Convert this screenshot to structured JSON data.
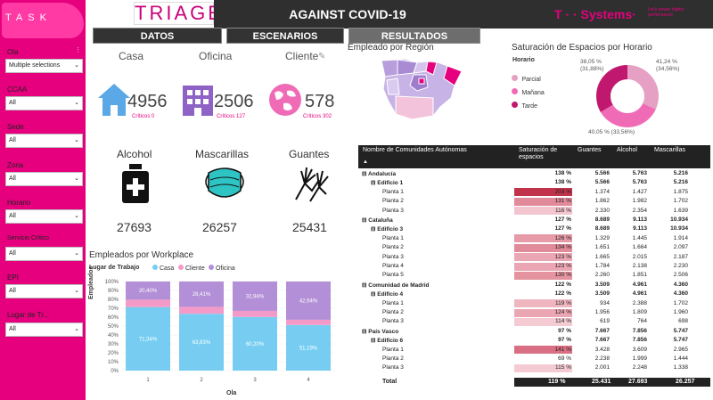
{
  "app": {
    "logo_text": "TASK",
    "brand": "TRIAGE",
    "header_title": "AGAINST COVID-19",
    "vendor": "T · · Systems·",
    "vendor_tagline": "Let's power higher performance",
    "tabs": [
      "DATOS",
      "ESCENARIOS",
      "RESULTADOS"
    ]
  },
  "filters": [
    {
      "label": "Ola",
      "value": "Multiple selections"
    },
    {
      "label": "CCAA",
      "value": "All"
    },
    {
      "label": "Sede",
      "value": "All"
    },
    {
      "label": "Zona",
      "value": "All"
    },
    {
      "label": "Horario",
      "value": "All"
    },
    {
      "label": "Servicio Crítico",
      "value": "All"
    },
    {
      "label": "EPI",
      "value": "All"
    },
    {
      "label": "Lugar de Tr...",
      "value": "All"
    }
  ],
  "kpis": {
    "casa": {
      "label": "Casa",
      "value": "4956",
      "crit_label": "Críticos",
      "crit_value": "0"
    },
    "oficina": {
      "label": "Oficina",
      "value": "2506",
      "crit_label": "Críticos",
      "crit_value": "127"
    },
    "cliente": {
      "label": "Cliente",
      "value": "578",
      "crit_label": "Críticos",
      "crit_value": "302"
    }
  },
  "supplies": {
    "alcohol": {
      "label": "Alcohol",
      "value": "27693"
    },
    "mascarillas": {
      "label": "Mascarillas",
      "value": "26257"
    },
    "guantes": {
      "label": "Guantes",
      "value": "25431"
    }
  },
  "region_map": {
    "title": "Empleado por Región"
  },
  "donut": {
    "title": "Saturación de Espacios por Horario",
    "legend_title": "Horario",
    "legend": [
      {
        "name": "Parcial",
        "color": "#e6a0c4"
      },
      {
        "name": "Mañana",
        "color": "#f06bb5"
      },
      {
        "name": "Tarde",
        "color": "#c0186f"
      }
    ],
    "labels": [
      "38,05 % (31,88%)",
      "41,24 % (34,56%)",
      "40,05 % (33,56%)"
    ]
  },
  "chart_data": {
    "type": "bar",
    "title": "Empleados por Workplace",
    "legend_title": "Lugar de Trabajo",
    "categories": [
      "1",
      "2",
      "3",
      "4"
    ],
    "xlabel": "Ola",
    "ylabel": "Empleados",
    "ylim": [
      0,
      100
    ],
    "yticks": [
      "0%",
      "10%",
      "20%",
      "30%",
      "40%",
      "50%",
      "60%",
      "70%",
      "80%",
      "90%",
      "100%"
    ],
    "series": [
      {
        "name": "Casa",
        "color": "#76cdf1",
        "values": [
          71.34,
          63.83,
          60.2,
          51.19
        ],
        "labels": [
          "71,34%",
          "63,83%",
          "60,20%",
          "51,19%"
        ]
      },
      {
        "name": "Cliente",
        "color": "#f49ac8",
        "values": [
          8.26,
          7.76,
          6.86,
          5.87
        ],
        "labels": [
          "",
          "",
          "",
          ""
        ]
      },
      {
        "name": "Oficina",
        "color": "#b28fd6",
        "values": [
          20.4,
          28.41,
          32.94,
          42.94
        ],
        "labels": [
          "20,40%",
          "28,41%",
          "32,94%",
          "42,94%"
        ]
      }
    ]
  },
  "table": {
    "headers": [
      "Nombre de Comunidades Autónomas",
      "Saturación de espacios",
      "Guantes",
      "Alcohol",
      "Mascarillas"
    ],
    "rows": [
      {
        "level": 0,
        "exp": "⊟",
        "name": "Andalucía",
        "sat": "138 %",
        "g": "5.566",
        "a": "5.763",
        "m": "5.216",
        "heat": ""
      },
      {
        "level": 1,
        "exp": "⊟",
        "name": "Edificio 1",
        "sat": "138 %",
        "g": "5.566",
        "a": "5.763",
        "m": "5.216",
        "heat": ""
      },
      {
        "level": 2,
        "exp": "",
        "name": "Planta 1",
        "sat": "203 %",
        "g": "1.374",
        "a": "1.427",
        "m": "1.875",
        "heat": "#c0334a"
      },
      {
        "level": 2,
        "exp": "",
        "name": "Planta 2",
        "sat": "131 %",
        "g": "1.862",
        "a": "1.982",
        "m": "1.702",
        "heat": "#e08a9a"
      },
      {
        "level": 2,
        "exp": "",
        "name": "Planta 3",
        "sat": "116 %",
        "g": "2.330",
        "a": "2.354",
        "m": "1.639",
        "heat": "#f3c6cf"
      },
      {
        "level": 0,
        "exp": "⊟",
        "name": "Cataluña",
        "sat": "127 %",
        "g": "8.689",
        "a": "9.113",
        "m": "10.934",
        "heat": ""
      },
      {
        "level": 1,
        "exp": "⊟",
        "name": "Edificio 3",
        "sat": "127 %",
        "g": "8.689",
        "a": "9.113",
        "m": "10.934",
        "heat": ""
      },
      {
        "level": 2,
        "exp": "",
        "name": "Planta 1",
        "sat": "126 %",
        "g": "1.329",
        "a": "1.445",
        "m": "1.914",
        "heat": "#e79aa8"
      },
      {
        "level": 2,
        "exp": "",
        "name": "Planta 2",
        "sat": "134 %",
        "g": "1.651",
        "a": "1.664",
        "m": "2.097",
        "heat": "#e08a9a"
      },
      {
        "level": 2,
        "exp": "",
        "name": "Planta 3",
        "sat": "123 %",
        "g": "1.665",
        "a": "2.015",
        "m": "2.187",
        "heat": "#eba6b3"
      },
      {
        "level": 2,
        "exp": "",
        "name": "Planta 4",
        "sat": "123 %",
        "g": "1.784",
        "a": "2.138",
        "m": "2.230",
        "heat": "#eba6b3"
      },
      {
        "level": 2,
        "exp": "",
        "name": "Planta 5",
        "sat": "130 %",
        "g": "2.260",
        "a": "1.851",
        "m": "2.506",
        "heat": "#e4939f"
      },
      {
        "level": 0,
        "exp": "⊟",
        "name": "Comunidad de Madrid",
        "sat": "122 %",
        "g": "3.509",
        "a": "4.961",
        "m": "4.360",
        "heat": ""
      },
      {
        "level": 1,
        "exp": "⊟",
        "name": "Edificio 4",
        "sat": "122 %",
        "g": "3.509",
        "a": "4.961",
        "m": "4.360",
        "heat": ""
      },
      {
        "level": 2,
        "exp": "",
        "name": "Planta 1",
        "sat": "119 %",
        "g": "934",
        "a": "2.388",
        "m": "1.702",
        "heat": "#efb6c0"
      },
      {
        "level": 2,
        "exp": "",
        "name": "Planta 2",
        "sat": "124 %",
        "g": "1.956",
        "a": "1.809",
        "m": "1.960",
        "heat": "#eba6b3"
      },
      {
        "level": 2,
        "exp": "",
        "name": "Planta 3",
        "sat": "114 %",
        "g": "619",
        "a": "764",
        "m": "698",
        "heat": "#f5cbd3"
      },
      {
        "level": 0,
        "exp": "⊟",
        "name": "País Vasco",
        "sat": "97 %",
        "g": "7.667",
        "a": "7.856",
        "m": "5.747",
        "heat": ""
      },
      {
        "level": 1,
        "exp": "⊟",
        "name": "Edificio 6",
        "sat": "97 %",
        "g": "7.667",
        "a": "7.856",
        "m": "5.747",
        "heat": ""
      },
      {
        "level": 2,
        "exp": "",
        "name": "Planta 1",
        "sat": "141 %",
        "g": "3.428",
        "a": "3.609",
        "m": "2.965",
        "heat": "#d96f82"
      },
      {
        "level": 2,
        "exp": "",
        "name": "Planta 2",
        "sat": "69 %",
        "g": "2.238",
        "a": "1.999",
        "m": "1.444",
        "heat": "#ffffff"
      },
      {
        "level": 2,
        "exp": "",
        "name": "Planta 3",
        "sat": "115 %",
        "g": "2.001",
        "a": "2.248",
        "m": "1.338",
        "heat": "#f5cbd3"
      }
    ],
    "total": {
      "name": "Total",
      "sat": "119 %",
      "g": "25.431",
      "a": "27.693",
      "m": "26.257"
    }
  }
}
